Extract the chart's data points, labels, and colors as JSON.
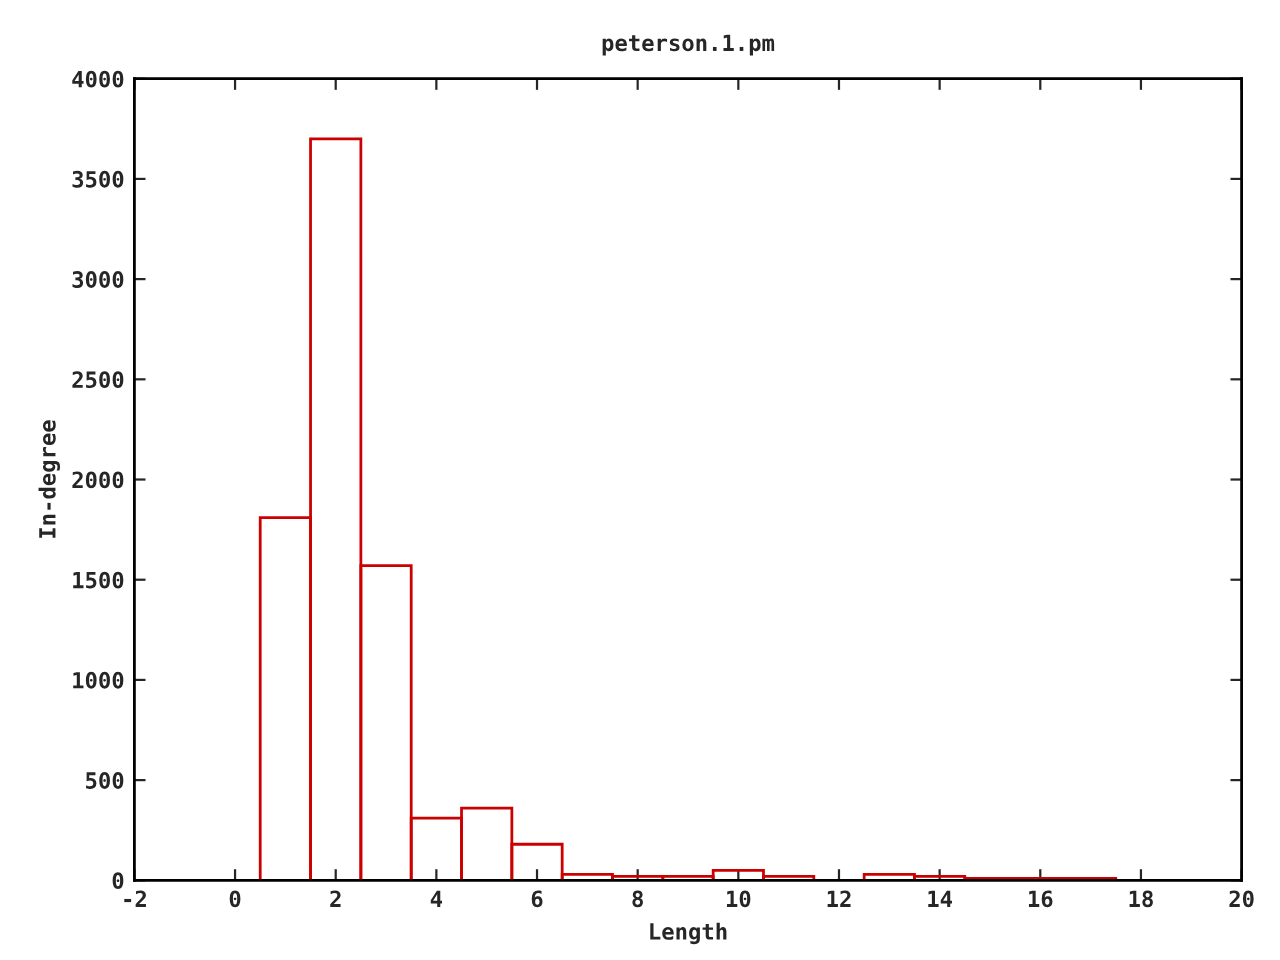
{
  "chart_data": {
    "type": "histogram",
    "title": "peterson.1.pm",
    "xlabel": "Length",
    "ylabel": "In-degree",
    "bins": [
      0.5,
      1.5,
      2.5,
      3.5,
      4.5,
      5.5,
      6.5,
      7.5,
      8.5,
      9.5,
      10.5,
      11.5,
      12.5,
      13.5,
      14.5,
      15.5,
      16.5,
      17.5
    ],
    "values": [
      1810,
      3700,
      1570,
      310,
      360,
      180,
      30,
      20,
      20,
      50,
      20,
      0,
      30,
      20,
      10,
      10,
      10
    ],
    "color": "#cc0000",
    "xlim": [
      -2,
      20
    ],
    "xticks": [
      -2,
      0,
      2,
      4,
      6,
      8,
      10,
      12,
      14,
      16,
      18,
      20
    ],
    "ylim": [
      0,
      4000
    ],
    "yticks": [
      0,
      500,
      1000,
      1500,
      2000,
      2500,
      3000,
      3500,
      4000
    ],
    "grid": false,
    "legend": false
  }
}
